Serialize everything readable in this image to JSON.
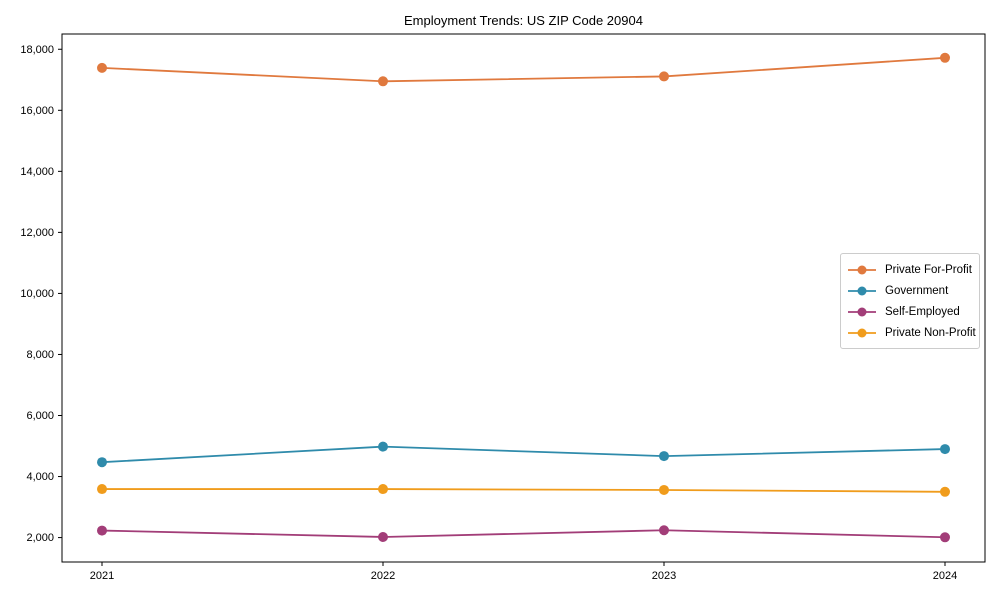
{
  "figure": {
    "background": "#ffffff",
    "spine_color": "#000000",
    "text_color": "#000000"
  },
  "chart_data": {
    "type": "line",
    "title": "Employment Trends: US ZIP Code 20904",
    "xlabel": "",
    "ylabel": "",
    "categories": [
      "2021",
      "2022",
      "2023",
      "2024"
    ],
    "series": [
      {
        "name": "Private For-Profit",
        "color": "#e0793e",
        "values": [
          17390,
          16950,
          17110,
          17720
        ]
      },
      {
        "name": "Government",
        "color": "#2f8bab",
        "values": [
          4470,
          4980,
          4670,
          4900
        ]
      },
      {
        "name": "Self-Employed",
        "color": "#a23d78",
        "values": [
          2230,
          2020,
          2240,
          2010
        ]
      },
      {
        "name": "Private Non-Profit",
        "color": "#f09c1c",
        "values": [
          3590,
          3590,
          3560,
          3500
        ]
      }
    ],
    "ylim": [
      1200,
      18500
    ],
    "yticks": [
      2000,
      4000,
      6000,
      8000,
      10000,
      12000,
      14000,
      16000,
      18000
    ],
    "ytick_labels": [
      "2,000",
      "4,000",
      "6,000",
      "8,000",
      "10,000",
      "12,000",
      "14,000",
      "16,000",
      "18,000"
    ],
    "grid": false,
    "legend": {
      "position": "center-right",
      "background": "#ffffff",
      "border_color": "#cccccc",
      "entries": [
        "Private For-Profit",
        "Government",
        "Self-Employed",
        "Private Non-Profit"
      ]
    }
  }
}
